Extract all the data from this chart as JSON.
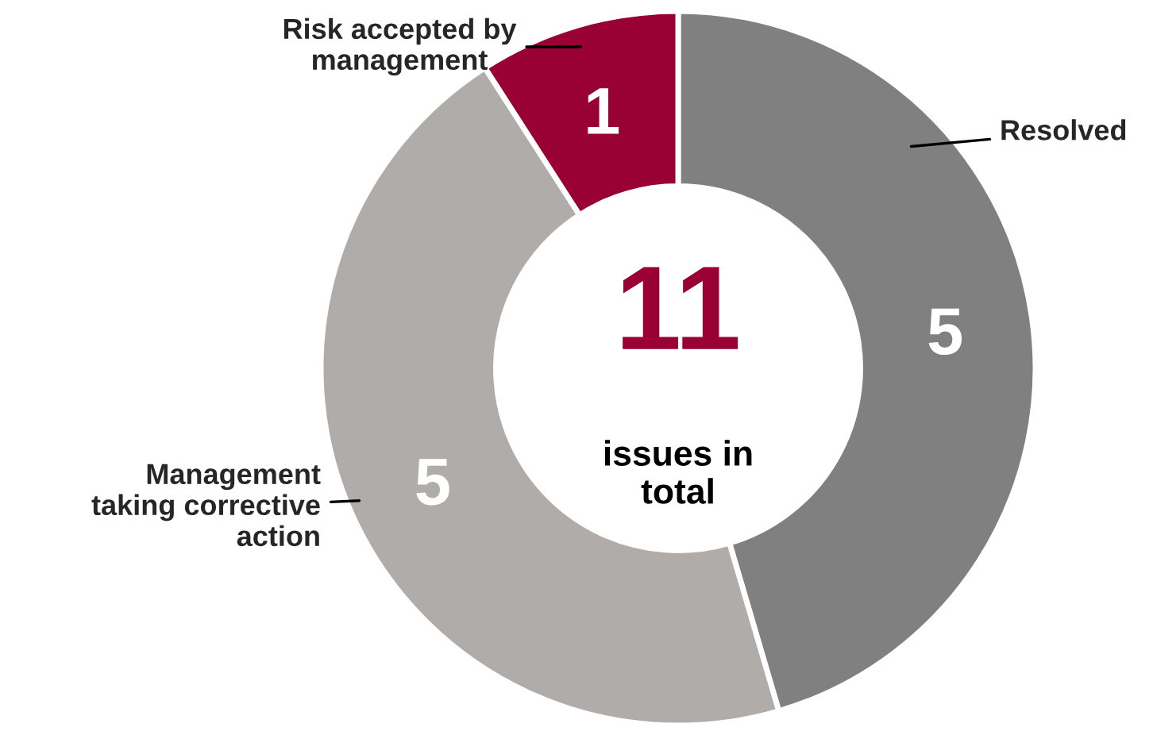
{
  "chart_data": {
    "type": "donut",
    "categories": [
      "Resolved",
      "Management\ntaking corrective\naction",
      "Risk accepted by\nmanagement"
    ],
    "values": [
      5,
      5,
      1
    ],
    "colors": [
      "#808080",
      "#b0acaa",
      "#990033"
    ],
    "data_labels": true,
    "annotations": [
      "11",
      "issues in\ntotal"
    ]
  }
}
